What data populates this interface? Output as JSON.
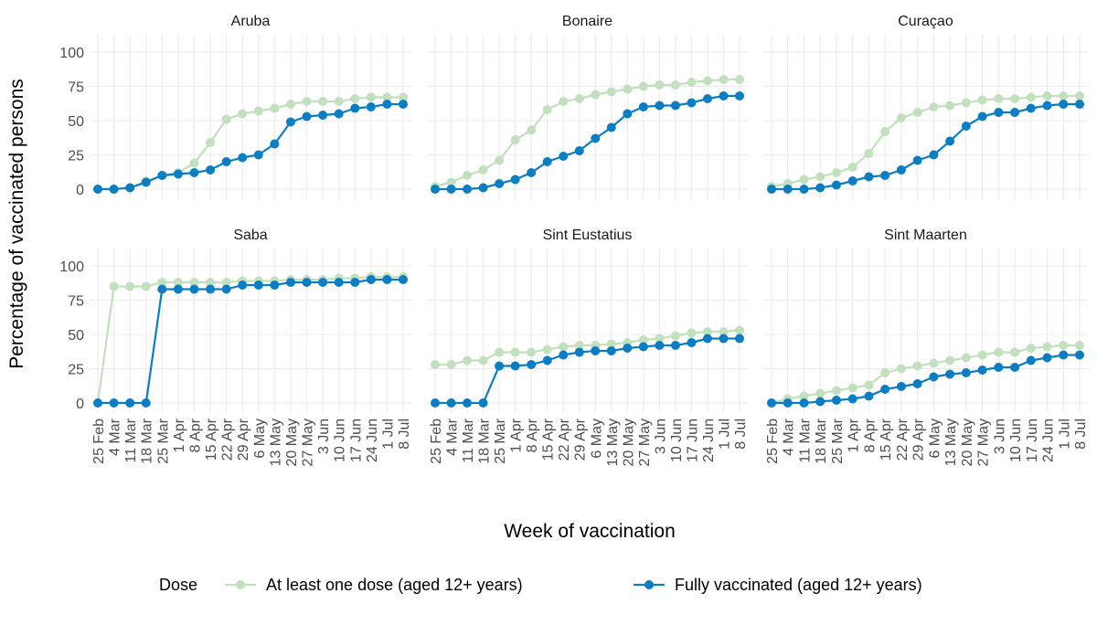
{
  "chart_data": {
    "type": "line",
    "y_label": "Percentage of vaccinated persons",
    "x_label": "Week of vaccination",
    "legend_title": "Dose",
    "grid": true,
    "ylim": [
      0,
      100
    ],
    "yticks": [
      0,
      25,
      50,
      75,
      100
    ],
    "categories": [
      "25 Feb",
      "4 Mar",
      "11 Mar",
      "18 Mar",
      "25 Mar",
      "1 Apr",
      "8 Apr",
      "15 Apr",
      "22 Apr",
      "29 Apr",
      "6 May",
      "13 May",
      "20 May",
      "27 May",
      "3 Jun",
      "10 Jun",
      "17 Jun",
      "24 Jun",
      "1 Jul",
      "8 Jul"
    ],
    "series": [
      {
        "name": "At least one dose (aged 12+ years)",
        "color": "#c2e0bd"
      },
      {
        "name": "Fully vaccinated (aged 12+ years)",
        "color": "#0b7dc2"
      }
    ],
    "facets": [
      {
        "title": "Aruba",
        "series": [
          {
            "values": [
              0,
              0,
              1,
              6,
              10,
              12,
              19,
              34,
              51,
              55,
              57,
              59,
              62,
              64,
              64,
              64,
              66,
              67,
              67,
              67
            ]
          },
          {
            "values": [
              0,
              0,
              1,
              5,
              10,
              11,
              12,
              14,
              20,
              23,
              25,
              33,
              49,
              53,
              54,
              55,
              59,
              60,
              62,
              62
            ]
          }
        ]
      },
      {
        "title": "Bonaire",
        "series": [
          {
            "values": [
              2,
              5,
              10,
              14,
              21,
              36,
              43,
              58,
              64,
              66,
              69,
              71,
              73,
              75,
              76,
              76,
              78,
              79,
              80,
              80
            ]
          },
          {
            "values": [
              0,
              0,
              0,
              1,
              4,
              7,
              12,
              20,
              24,
              28,
              37,
              45,
              55,
              60,
              61,
              61,
              63,
              66,
              68,
              68
            ]
          }
        ]
      },
      {
        "title": "Curaçao",
        "series": [
          {
            "values": [
              2,
              4,
              7,
              9,
              12,
              16,
              26,
              42,
              52,
              56,
              60,
              61,
              63,
              65,
              66,
              66,
              67,
              68,
              68,
              68
            ]
          },
          {
            "values": [
              0,
              0,
              0,
              1,
              3,
              6,
              9,
              10,
              14,
              21,
              25,
              35,
              46,
              53,
              56,
              56,
              59,
              61,
              62,
              62
            ]
          }
        ]
      },
      {
        "title": "Saba",
        "series": [
          {
            "values": [
              0,
              85,
              85,
              85,
              88,
              88,
              88,
              88,
              88,
              89,
              89,
              89,
              90,
              90,
              90,
              91,
              91,
              92,
              92,
              92
            ]
          },
          {
            "values": [
              0,
              0,
              0,
              0,
              83,
              83,
              83,
              83,
              83,
              86,
              86,
              86,
              88,
              88,
              88,
              88,
              88,
              90,
              90,
              90
            ]
          }
        ]
      },
      {
        "title": "Sint Eustatius",
        "series": [
          {
            "values": [
              28,
              28,
              31,
              31,
              37,
              37,
              37,
              39,
              41,
              42,
              42,
              43,
              44,
              46,
              47,
              49,
              51,
              52,
              52,
              53
            ]
          },
          {
            "values": [
              0,
              0,
              0,
              0,
              27,
              27,
              28,
              31,
              35,
              37,
              38,
              38,
              40,
              41,
              42,
              42,
              44,
              47,
              47,
              47
            ]
          }
        ]
      },
      {
        "title": "Sint Maarten",
        "series": [
          {
            "values": [
              0,
              3,
              5,
              7,
              9,
              11,
              13,
              22,
              25,
              27,
              29,
              31,
              33,
              35,
              37,
              37,
              40,
              41,
              42,
              42
            ]
          },
          {
            "values": [
              0,
              0,
              0,
              1,
              2,
              3,
              5,
              10,
              12,
              14,
              19,
              21,
              22,
              24,
              26,
              26,
              31,
              33,
              35,
              35
            ]
          }
        ]
      }
    ]
  }
}
